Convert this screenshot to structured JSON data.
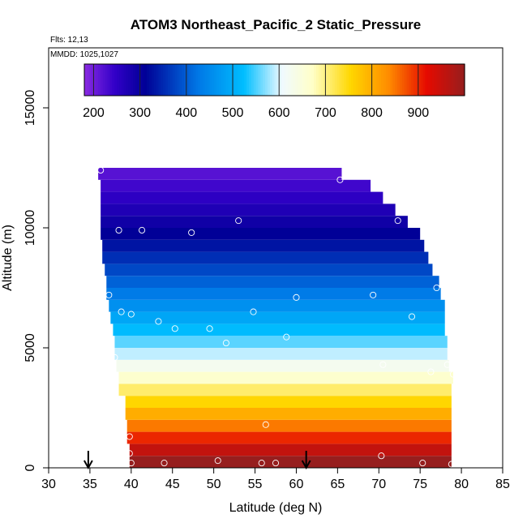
{
  "chart_data": {
    "type": "heatmap",
    "title": "ATOM3 Northeast_Pacific_2 Static_Pressure",
    "flights_note": "Flts: 12,13",
    "dates_note": "MMDD: 1025,1027",
    "xlabel": "Latitude (deg N)",
    "ylabel": "Altitude (m)",
    "xlim": [
      30,
      85
    ],
    "ylim": [
      0,
      17500
    ],
    "x_ticks": [
      30,
      35,
      40,
      45,
      50,
      55,
      60,
      65,
      70,
      75,
      80,
      85
    ],
    "y_ticks": [
      0,
      5000,
      10000,
      15000
    ],
    "colorbar": {
      "label_values": [
        200,
        300,
        400,
        500,
        600,
        700,
        800,
        900
      ],
      "range": [
        180,
        1000
      ]
    },
    "cells": {
      "altitude_step_m": 500,
      "altitudes_m": [
        0,
        500,
        1000,
        1500,
        2000,
        2500,
        3000,
        3500,
        4000,
        4500,
        5000,
        5500,
        6000,
        6500,
        7000,
        7500,
        8000,
        8500,
        9000,
        9500,
        10000,
        10500,
        11000,
        11500,
        12000
      ],
      "lat_start": [
        39.8,
        39.8,
        39.5,
        39.5,
        39.3,
        39.3,
        38.5,
        38.5,
        38.2,
        38.0,
        38.0,
        37.8,
        37.5,
        37.3,
        37.0,
        37.0,
        36.8,
        36.5,
        36.5,
        36.3,
        36.3,
        36.3,
        36.3,
        36.3,
        36.0
      ],
      "lat_end": [
        78.8,
        78.8,
        78.8,
        78.8,
        78.8,
        78.8,
        78.8,
        79.0,
        78.5,
        78.3,
        78.3,
        78.0,
        78.0,
        78.0,
        77.5,
        77.3,
        76.5,
        76.0,
        75.5,
        75.0,
        73.5,
        72.0,
        70.5,
        69.0,
        65.5
      ],
      "pressure_hPa": [
        1005,
        955,
        900,
        848,
        800,
        755,
        710,
        665,
        625,
        590,
        555,
        520,
        490,
        460,
        430,
        405,
        380,
        355,
        330,
        310,
        290,
        270,
        252,
        235,
        218
      ]
    },
    "points_lat_alt": [
      [
        36.3,
        12400
      ],
      [
        65.3,
        12000
      ],
      [
        72.3,
        10300
      ],
      [
        53.0,
        10300
      ],
      [
        38.5,
        9900
      ],
      [
        41.3,
        9900
      ],
      [
        47.3,
        9800
      ],
      [
        37.3,
        7200
      ],
      [
        60.0,
        7100
      ],
      [
        69.3,
        7200
      ],
      [
        77.0,
        7500
      ],
      [
        38.8,
        6500
      ],
      [
        40.0,
        6400
      ],
      [
        43.3,
        6100
      ],
      [
        54.8,
        6500
      ],
      [
        74.0,
        6300
      ],
      [
        45.3,
        5800
      ],
      [
        49.5,
        5800
      ],
      [
        51.5,
        5200
      ],
      [
        58.8,
        5450
      ],
      [
        38.0,
        4600
      ],
      [
        70.5,
        4300
      ],
      [
        76.3,
        4000
      ],
      [
        78.3,
        4300
      ],
      [
        79.0,
        3900
      ],
      [
        56.3,
        1800
      ],
      [
        39.8,
        1300
      ],
      [
        39.8,
        600
      ],
      [
        70.3,
        500
      ],
      [
        44.0,
        200
      ],
      [
        40.0,
        200
      ],
      [
        50.5,
        300
      ],
      [
        55.8,
        200
      ],
      [
        57.5,
        200
      ],
      [
        75.3,
        200
      ],
      [
        78.8,
        150
      ]
    ],
    "arrows_lat": [
      34.8,
      61.2
    ]
  }
}
